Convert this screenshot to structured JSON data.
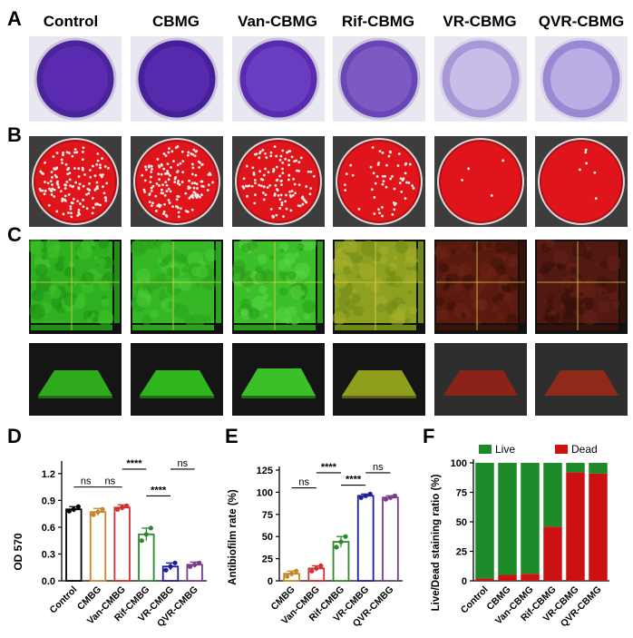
{
  "panel_labels": {
    "a": "A",
    "b": "B",
    "c": "C",
    "d": "D",
    "e": "E",
    "f": "F"
  },
  "groups": [
    "Control",
    "CBMG",
    "Van-CBMG",
    "Rif-CBMG",
    "VR-CBMG",
    "QVR-CBMG"
  ],
  "colors": {
    "crystal_violet": "#5a2bb0",
    "blood_agar": "#e0141b",
    "colony": "#f4efe8",
    "live_green": "#2bbf1f",
    "dead_red": "#c01414",
    "bar_f_live": "#1d8a2a",
    "bar_f_dead": "#cc1111"
  },
  "chart_data": [
    {
      "panel": "D",
      "type": "bar",
      "title": "",
      "xlabel": "",
      "ylabel": "OD 570",
      "categories": [
        "Control",
        "CMBG",
        "Van-CMBG",
        "Rif-CMBG",
        "VR-CMBG",
        "QVR-CMBG"
      ],
      "values": [
        0.8,
        0.77,
        0.82,
        0.52,
        0.16,
        0.18
      ],
      "errors": [
        0.03,
        0.04,
        0.03,
        0.07,
        0.04,
        0.03
      ],
      "points": [
        [
          0.78,
          0.8,
          0.83
        ],
        [
          0.74,
          0.77,
          0.8
        ],
        [
          0.8,
          0.82,
          0.84
        ],
        [
          0.45,
          0.52,
          0.59
        ],
        [
          0.12,
          0.16,
          0.2
        ],
        [
          0.16,
          0.18,
          0.2
        ]
      ],
      "bar_colors": [
        "#000000",
        "#c8862a",
        "#d03030",
        "#2c8a2c",
        "#1e1e9a",
        "#7a3d8c"
      ],
      "yticks": [
        "0.0",
        "0.3",
        "0.6",
        "0.9",
        "1.2"
      ],
      "ylim": [
        0,
        1.3
      ],
      "significance": [
        {
          "from": 0,
          "to": 1,
          "label": "ns",
          "level": 1.05
        },
        {
          "from": 1,
          "to": 2,
          "label": "ns",
          "level": 1.05
        },
        {
          "from": 2,
          "to": 3,
          "label": "****",
          "level": 1.25
        },
        {
          "from": 3,
          "to": 4,
          "label": "****",
          "level": 0.95
        },
        {
          "from": 4,
          "to": 5,
          "label": "ns",
          "level": 1.25
        }
      ]
    },
    {
      "panel": "E",
      "type": "bar",
      "title": "",
      "xlabel": "",
      "ylabel": "Antibiofilm rate (%)",
      "categories": [
        "CMBG",
        "Van-CMBG",
        "Rif-CMBG",
        "VR-CMBG",
        "QVR-CMBG"
      ],
      "values": [
        8,
        14,
        44,
        96,
        94
      ],
      "errors": [
        3,
        3,
        6,
        2,
        2
      ],
      "points": [
        [
          5,
          8,
          11
        ],
        [
          11,
          14,
          17
        ],
        [
          38,
          44,
          50
        ],
        [
          94,
          96,
          98
        ],
        [
          92,
          94,
          96
        ]
      ],
      "bar_colors": [
        "#c8862a",
        "#d03030",
        "#2c8a2c",
        "#1e1e9a",
        "#7a3d8c"
      ],
      "yticks": [
        "0",
        "25",
        "50",
        "75",
        "100",
        "125"
      ],
      "ylim": [
        0,
        125
      ],
      "significance": [
        {
          "from": 0,
          "to": 1,
          "label": "ns",
          "level": 105
        },
        {
          "from": 1,
          "to": 2,
          "label": "****",
          "level": 122
        },
        {
          "from": 2,
          "to": 3,
          "label": "****",
          "level": 108
        },
        {
          "from": 3,
          "to": 4,
          "label": "ns",
          "level": 122
        }
      ]
    },
    {
      "panel": "F",
      "type": "bar",
      "stacked": true,
      "title": "",
      "xlabel": "",
      "ylabel": "Live/Dead staining ratio (%)",
      "categories": [
        "Control",
        "CBMG",
        "Van-CBMG",
        "Rif-CBMG",
        "VR-CBMG",
        "QVR-CBMG"
      ],
      "series": [
        {
          "name": "Dead",
          "values": [
            2,
            5,
            6,
            46,
            92,
            91
          ]
        },
        {
          "name": "Live",
          "values": [
            98,
            95,
            94,
            54,
            8,
            9
          ]
        }
      ],
      "legend": [
        "Live",
        "Dead"
      ],
      "legend_placement": "top",
      "yticks": [
        "0",
        "25",
        "50",
        "75",
        "100"
      ],
      "ylim": [
        0,
        100
      ]
    }
  ]
}
